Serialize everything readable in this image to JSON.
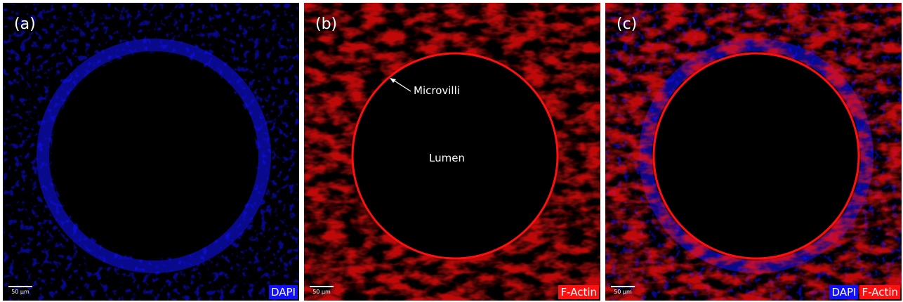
{
  "panels": [
    {
      "label": "(a)",
      "scale_bar": "50 µm",
      "stains": [
        {
          "name": "DAPI",
          "color": "#1010ff"
        }
      ]
    },
    {
      "label": "(b)",
      "scale_bar": "50 µm",
      "stains": [
        {
          "name": "F-Actin",
          "color": "#ff1010"
        }
      ],
      "annotations": [
        "Microvilli",
        "Lumen"
      ]
    },
    {
      "label": "(c)",
      "scale_bar": "50 µm",
      "stains": [
        {
          "name": "DAPI",
          "color": "#1010ff"
        },
        {
          "name": "F-Actin",
          "color": "#ff1010"
        }
      ]
    }
  ]
}
